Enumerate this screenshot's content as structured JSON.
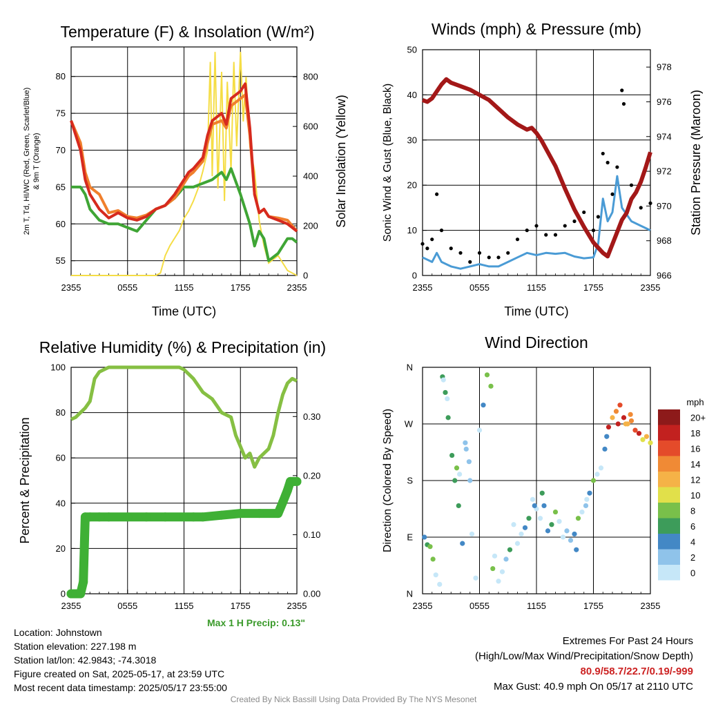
{
  "colors": {
    "temp": "#d62a1e",
    "heat_index": "#2a7a1e",
    "dewpoint": "#3fa535",
    "temp9m": "#f07f2c",
    "insolation": "#f5dd45",
    "gust": "#000000",
    "wind": "#4a9bd5",
    "pressure": "#a31818",
    "rh": "#86bf43",
    "precip": "#3fb035"
  },
  "time_ticks": [
    "2355",
    "0555",
    "1155",
    "1755",
    "2355"
  ],
  "max_precip_label": "Max 1 H Precip: 0.13\"",
  "info": {
    "location": "Location: Johnstown",
    "elevation": "Station elevation: 227.198 m",
    "latlon": "Station lat/lon: 42.9843; -74.3018",
    "created": "Figure created on Sat, 2025-05-17, at 23:59 UTC",
    "recent": "Most recent data timestamp: 2025/05/17 23:55:00"
  },
  "extremes": {
    "title": "Extremes For Past 24 Hours",
    "subtitle": "(High/Low/Max Wind/Precipitation/Snow Depth)",
    "values": "80.9/58.7/22.7/0.19/-999",
    "gust": "Max Gust: 40.9 mph On 05/17 at 2110 UTC"
  },
  "footer": "Created By Nick Bassill Using Data Provided By The NYS Mesonet",
  "chart_data": [
    {
      "type": "line",
      "title": "Temperature (F) & Insolation (W/m²)",
      "xlabel": "Time (UTC)",
      "ylabel_lines": [
        "2m T, Td, HI/WC (Red, Green, Scarlet/Blue)",
        "& 9m T (Orange)"
      ],
      "y2label": "Solar Insolation (Yellow)",
      "xlim": [
        0,
        24
      ],
      "ylim": [
        53,
        84
      ],
      "y2lim": [
        0,
        920
      ],
      "yticks": [
        55,
        60,
        65,
        70,
        75,
        80
      ],
      "y2ticks": [
        0,
        200,
        400,
        600,
        800
      ],
      "series": [
        {
          "key": "temp",
          "x": [
            0,
            0.5,
            1,
            1.5,
            2,
            3,
            4,
            5,
            6,
            7,
            8,
            9,
            10,
            11,
            12,
            12.5,
            13,
            14,
            14.5,
            15,
            16,
            16.5,
            17,
            18,
            18.5,
            19,
            19.5,
            20,
            20.5,
            21,
            22,
            23,
            24
          ],
          "y": [
            74,
            72,
            70,
            66,
            64,
            62,
            60.8,
            61.5,
            60.8,
            60.5,
            61,
            62,
            62.5,
            64,
            66,
            67,
            67.5,
            69,
            72,
            74,
            75,
            73.5,
            77,
            78,
            79,
            73,
            64,
            61.5,
            62,
            61,
            60.5,
            60,
            59
          ]
        },
        {
          "key": "temp9m",
          "x": [
            0,
            0.5,
            1,
            1.5,
            2,
            3,
            4,
            5,
            6,
            7,
            8,
            9,
            10,
            11,
            12,
            12.5,
            13,
            14,
            14.5,
            15,
            16,
            16.5,
            17,
            18,
            18.5,
            19,
            19.5,
            20,
            20.5,
            21,
            22,
            23,
            24
          ],
          "y": [
            74,
            72.5,
            71,
            67,
            65,
            64,
            61.5,
            61.8,
            61,
            60.8,
            61.2,
            62,
            62.5,
            63.5,
            65.5,
            66.5,
            67,
            68.5,
            71,
            73.5,
            74,
            73,
            76,
            77,
            77.5,
            72,
            64,
            61.5,
            62,
            61,
            60.8,
            60.5,
            59
          ]
        },
        {
          "key": "dewpoint",
          "x": [
            0,
            1,
            1.5,
            2,
            3,
            4,
            5,
            6,
            7,
            8,
            9,
            10,
            11,
            12,
            13,
            14,
            15,
            16,
            16.5,
            17,
            18,
            18.5,
            19,
            19.5,
            20,
            20.5,
            21,
            22,
            23,
            23.5,
            24
          ],
          "y": [
            65,
            65,
            64,
            62,
            60.5,
            60,
            60,
            59.5,
            59,
            60.5,
            62,
            62.5,
            63.5,
            65,
            65,
            65.5,
            66,
            67,
            66,
            67.5,
            64,
            62,
            60,
            57,
            59,
            58,
            55,
            56,
            58,
            58,
            57.5
          ]
        },
        {
          "key": "insolation",
          "x": [
            0,
            9,
            9.5,
            10,
            10.5,
            11,
            11.5,
            12,
            12.5,
            13,
            13.5,
            14,
            14.5,
            14.8,
            15,
            15.3,
            15.6,
            16,
            16.3,
            16.6,
            17,
            17.3,
            17.6,
            18,
            18.3,
            18.6,
            19,
            19.5,
            20,
            20.5,
            21,
            22,
            23,
            24
          ],
          "y": [
            0,
            0,
            10,
            80,
            120,
            150,
            180,
            230,
            260,
            300,
            350,
            420,
            500,
            860,
            400,
            900,
            350,
            820,
            300,
            780,
            420,
            860,
            520,
            900,
            620,
            800,
            520,
            420,
            220,
            120,
            50,
            80,
            20,
            0
          ]
        }
      ]
    },
    {
      "type": "line",
      "title": "Winds (mph) & Pressure (mb)",
      "xlabel": "Time (UTC)",
      "ylabel": "Sonic Wind & Gust (Blue, Black)",
      "y2label": "Station Pressure (Maroon)",
      "xlim": [
        0,
        24
      ],
      "ylim": [
        0,
        50
      ],
      "y2lim": [
        966,
        979
      ],
      "yticks": [
        0,
        10,
        20,
        30,
        40,
        50
      ],
      "y2ticks": [
        966,
        968,
        970,
        972,
        974,
        976,
        978
      ],
      "series": [
        {
          "key": "wind",
          "x": [
            0,
            1,
            1.5,
            2,
            3,
            4,
            5,
            6,
            7,
            8,
            9,
            10,
            11,
            12,
            13,
            14,
            15,
            16,
            17,
            18,
            18.5,
            19,
            19.5,
            20,
            20.5,
            21,
            22,
            23,
            24
          ],
          "y": [
            4,
            3,
            5,
            3,
            2,
            1.5,
            2,
            2.5,
            2,
            2,
            3,
            4,
            5,
            4.5,
            5,
            4.8,
            5,
            4.2,
            3.8,
            4,
            7,
            17,
            12,
            14,
            22,
            15,
            12,
            11,
            10
          ]
        },
        {
          "key": "gust",
          "x": [
            0,
            0.5,
            1,
            1.5,
            2,
            3,
            4,
            5,
            6,
            7,
            8,
            9,
            10,
            11,
            12,
            13,
            14,
            15,
            16,
            17,
            18,
            18.5,
            19,
            19.5,
            20,
            20.5,
            21,
            21.2,
            22,
            23,
            24
          ],
          "y": [
            7,
            6,
            8,
            18,
            10,
            6,
            5,
            3,
            5,
            4,
            4,
            5,
            8,
            10,
            11,
            9,
            9,
            11,
            12,
            14,
            10,
            13,
            27,
            25,
            18,
            24,
            41,
            38,
            20,
            15,
            16
          ]
        },
        {
          "key": "pressure",
          "x": [
            0,
            0.5,
            1,
            1.5,
            2,
            2.5,
            3,
            4,
            5,
            6,
            7,
            8,
            9,
            10,
            11,
            11.5,
            12,
            12.5,
            13,
            14,
            15,
            16,
            17,
            18,
            19,
            19.5,
            20,
            20.5,
            21,
            21.5,
            22,
            22.5,
            23,
            23.5,
            24
          ],
          "y": [
            976.1,
            976.0,
            976.2,
            976.6,
            977.0,
            977.3,
            977.1,
            976.9,
            976.7,
            976.4,
            976.1,
            975.6,
            975.1,
            974.7,
            974.4,
            974.5,
            974.2,
            973.8,
            973.3,
            972.3,
            971.0,
            969.8,
            968.8,
            967.9,
            967.3,
            967.1,
            967.8,
            968.5,
            969.2,
            969.6,
            970.4,
            970.8,
            971.4,
            972.2,
            973.1
          ]
        }
      ]
    },
    {
      "type": "line",
      "title": "Relative Humidity (%) & Precipitation (in)",
      "ylabel": "Percent & Precipitation",
      "xlim": [
        0,
        24
      ],
      "ylim": [
        0,
        100
      ],
      "y2lim": [
        0,
        0.3833
      ],
      "yticks": [
        0,
        20,
        40,
        60,
        80,
        100
      ],
      "y2ticks": [
        0.0,
        0.1,
        0.2,
        0.3
      ],
      "series": [
        {
          "key": "rh",
          "x": [
            0,
            0.5,
            1,
            1.5,
            2,
            2.5,
            3,
            3.5,
            4,
            6,
            8,
            10,
            11,
            11.5,
            12,
            12.5,
            13,
            13.5,
            14,
            15,
            16,
            17,
            17.5,
            18,
            18.5,
            19,
            19.5,
            20,
            20.5,
            21,
            21.5,
            22,
            22.5,
            23,
            23.5,
            24
          ],
          "y": [
            77,
            78,
            80,
            82,
            85,
            95,
            98,
            99,
            100,
            100,
            100,
            100,
            100,
            100,
            99,
            97,
            95,
            92,
            89,
            86,
            80,
            78,
            70,
            65,
            60,
            62,
            56,
            60,
            62,
            64,
            70,
            80,
            88,
            93,
            95,
            94
          ]
        },
        {
          "key": "precip",
          "x": [
            0,
            0.5,
            1,
            1.3,
            1.5,
            2,
            3,
            4,
            6,
            8,
            10,
            12,
            13,
            14,
            16,
            18,
            20,
            22,
            22.5,
            23,
            23.3,
            23.6,
            24
          ],
          "y": [
            0,
            0,
            0,
            0.02,
            0.13,
            0.13,
            0.13,
            0.13,
            0.13,
            0.13,
            0.13,
            0.13,
            0.13,
            0.13,
            0.133,
            0.136,
            0.136,
            0.136,
            0.155,
            0.175,
            0.19,
            0.19,
            0.19
          ]
        }
      ]
    },
    {
      "type": "scatter",
      "title": "Wind Direction",
      "ylabel": "Direction (Colored By Speed)",
      "xlim": [
        0,
        24
      ],
      "ylim": [
        0,
        360
      ],
      "yticks": [
        "N",
        "E",
        "S",
        "W",
        "N"
      ],
      "colorbar": {
        "title": "mph",
        "levels": [
          "0",
          "2",
          "4",
          "6",
          "8",
          "10",
          "12",
          "14",
          "16",
          "18",
          "20+"
        ],
        "colors": [
          "#c6e7f8",
          "#8fc3ea",
          "#4388c5",
          "#3d9c5a",
          "#79c04a",
          "#e1e04a",
          "#f5b247",
          "#f08a35",
          "#e44b2a",
          "#c2211f",
          "#8d1a1a"
        ]
      },
      "series": [
        {
          "key": "dir",
          "x": [
            0.2,
            0.5,
            0.8,
            1.1,
            1.4,
            1.8,
            2.1,
            2.4,
            2.7,
            3.1,
            3.4,
            3.8,
            4.2,
            4.5,
            4.9,
            5.2,
            5.6,
            6.0,
            6.4,
            6.8,
            7.2,
            7.6,
            8.0,
            8.4,
            8.8,
            9.2,
            9.6,
            10.0,
            10.4,
            10.8,
            11.2,
            11.6,
            12.0,
            12.4,
            12.8,
            13.2,
            13.6,
            14.0,
            14.4,
            14.8,
            15.2,
            15.6,
            16.0,
            16.4,
            16.8,
            17.2,
            17.6,
            18.0,
            18.4,
            18.8,
            19.2,
            19.6,
            20.0,
            20.4,
            20.8,
            21.2,
            21.6,
            22.0,
            22.4,
            22.8,
            23.2,
            23.6,
            24.0,
            2.2,
            2.6,
            3.6,
            3.9,
            4.6,
            5.0,
            7.4,
            11.8,
            12.6,
            16.2,
            17.3,
            19.4,
            20.6,
            21.4,
            21.9
          ],
          "y": [
            90,
            78,
            75,
            55,
            30,
            15,
            345,
            320,
            280,
            220,
            180,
            140,
            80,
            240,
            210,
            95,
            25,
            260,
            300,
            348,
            330,
            60,
            20,
            35,
            55,
            70,
            110,
            80,
            95,
            105,
            120,
            150,
            135,
            120,
            140,
            100,
            110,
            130,
            115,
            90,
            100,
            85,
            95,
            120,
            130,
            140,
            160,
            180,
            190,
            200,
            230,
            265,
            280,
            290,
            300,
            280,
            270,
            275,
            260,
            255,
            245,
            250,
            240,
            340,
            310,
            200,
            190,
            230,
            180,
            40,
            140,
            160,
            70,
            150,
            250,
            270,
            270,
            285
          ]
        }
      ]
    }
  ]
}
